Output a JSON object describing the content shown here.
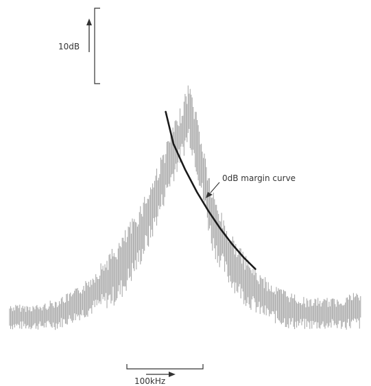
{
  "scale": {
    "vertical_label": "10dB",
    "horizontal_label": "100kHz"
  },
  "annotation": {
    "text": "0dB margin curve"
  },
  "colors": {
    "trace": "#a9a9a9",
    "curve": "#1a1a1a",
    "ink": "#333333"
  },
  "chart_data": {
    "type": "line",
    "title": "",
    "xlabel": "",
    "ylabel": "",
    "grid": false,
    "legend": "none",
    "x_unit": "kHz",
    "y_unit": "dB",
    "xlim": [
      0,
      450
    ],
    "ylim": [
      0,
      50
    ],
    "series": [
      {
        "name": "",
        "x": [
          0,
          20,
          40,
          60,
          80,
          100,
          120,
          140,
          160,
          180,
          200,
          220,
          230,
          240,
          250,
          260,
          280,
          300,
          320,
          340,
          360,
          380,
          400,
          420,
          440,
          450
        ],
        "low": [
          2,
          2,
          2,
          2,
          3,
          4,
          5,
          6,
          10,
          15,
          22,
          28,
          31,
          26,
          20,
          14,
          9,
          6,
          4,
          3,
          2,
          2,
          2,
          2,
          2,
          2
        ],
        "high": [
          6,
          6,
          6,
          7,
          8,
          10,
          13,
          16,
          20,
          25,
          31,
          37,
          41,
          36,
          30,
          24,
          18,
          14,
          11,
          9,
          8,
          7,
          7,
          7,
          8,
          8
        ]
      },
      {
        "name": "0dB margin curve",
        "x": [
          200,
          210,
          225,
          240,
          255,
          270,
          285,
          300,
          315
        ],
        "y": [
          36,
          31,
          27,
          23.5,
          20.5,
          17.8,
          15.4,
          13.3,
          11.5
        ]
      }
    ]
  }
}
